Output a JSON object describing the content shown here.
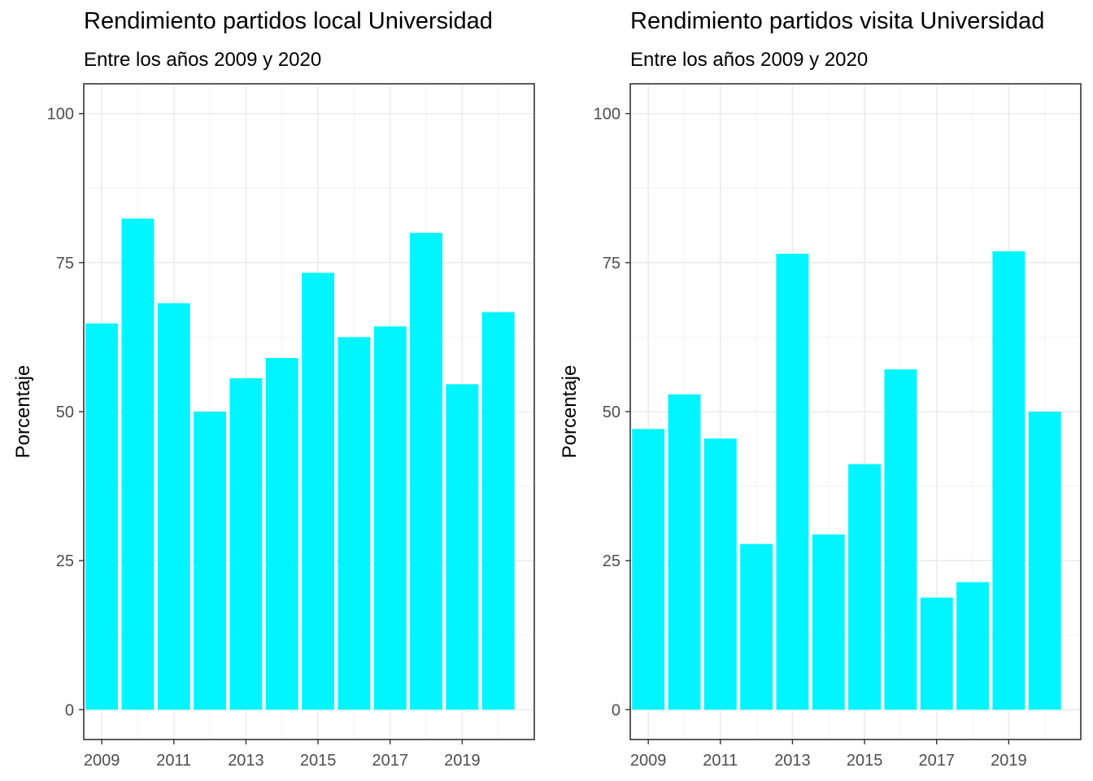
{
  "chart_data": [
    {
      "type": "bar",
      "title": "Rendimiento partidos local Universidad",
      "subtitle": "Entre los años 2009 y 2020",
      "xlabel": "",
      "ylabel": "Porcentaje",
      "x": [
        2009,
        2010,
        2011,
        2012,
        2013,
        2014,
        2015,
        2016,
        2017,
        2018,
        2019,
        2020
      ],
      "values": [
        64.8,
        82.4,
        68.2,
        50.0,
        55.6,
        59.0,
        73.3,
        62.5,
        64.3,
        80.0,
        54.6,
        66.7
      ],
      "ylim": [
        -5,
        105
      ],
      "y_ticks": [
        0,
        25,
        50,
        75,
        100
      ],
      "x_ticks": [
        2009,
        2011,
        2013,
        2015,
        2017,
        2019
      ],
      "xlim": [
        2008.5,
        2021.0
      ],
      "bar_color": "#00F5FF",
      "grid": true
    },
    {
      "type": "bar",
      "title": "Rendimiento partidos visita Universidad",
      "subtitle": "Entre los años 2009 y 2020",
      "xlabel": "",
      "ylabel": "Porcentaje",
      "x": [
        2009,
        2010,
        2011,
        2012,
        2013,
        2014,
        2015,
        2016,
        2017,
        2018,
        2019,
        2020
      ],
      "values": [
        47.1,
        52.9,
        45.5,
        27.8,
        76.5,
        29.4,
        41.2,
        57.1,
        18.8,
        21.4,
        76.9,
        50.0
      ],
      "ylim": [
        -5,
        105
      ],
      "y_ticks": [
        0,
        25,
        50,
        75,
        100
      ],
      "x_ticks": [
        2009,
        2011,
        2013,
        2015,
        2017,
        2019
      ],
      "xlim": [
        2008.5,
        2021.0
      ],
      "bar_color": "#00F5FF",
      "grid": true
    }
  ]
}
